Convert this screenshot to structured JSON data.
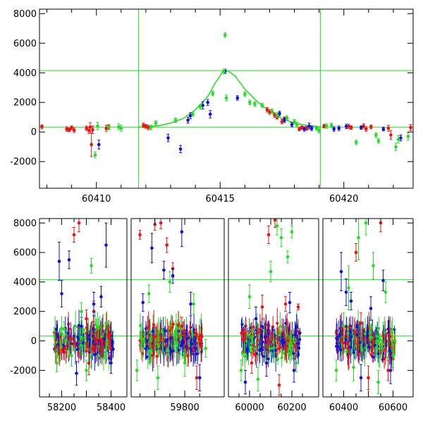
{
  "chart_data": [
    {
      "type": "scatter",
      "title": "",
      "xlabel": "",
      "ylabel": "",
      "xlim": [
        60407.7,
        60422.8
      ],
      "ylim": [
        -3800,
        8300
      ],
      "xticks": [
        60410,
        60415,
        60420
      ],
      "yticks": [
        -2000,
        0,
        2000,
        4000,
        6000,
        8000
      ],
      "hlines": [
        4150,
        330
      ],
      "vlines": [
        60411.7,
        60419.05
      ],
      "colors": {
        "red": "#ee1111",
        "blue": "#1111dd",
        "green": "#22dd22"
      },
      "model_curve": {
        "color": "#22dd22",
        "x": [
          60411.7,
          60412.5,
          60413.0,
          60413.5,
          60414.0,
          60414.5,
          60414.8,
          60415.1,
          60415.3,
          60415.6,
          60416.0,
          60416.5,
          60417.0,
          60417.5,
          60418.0,
          60418.5,
          60419.05
        ],
        "y": [
          330,
          420,
          600,
          900,
          1500,
          2400,
          3300,
          4050,
          4150,
          3800,
          2900,
          2050,
          1400,
          900,
          600,
          450,
          330
        ]
      },
      "series": [
        {
          "color": "red",
          "points": [
            [
              60407.8,
              360,
              120
            ],
            [
              60408.8,
              200,
              150
            ],
            [
              60408.9,
              150,
              120
            ],
            [
              60409.0,
              280,
              130
            ],
            [
              60409.1,
              120,
              150
            ],
            [
              60409.6,
              250,
              150
            ],
            [
              60409.7,
              100,
              200
            ],
            [
              60409.75,
              330,
              300
            ],
            [
              60409.8,
              -850,
              800
            ],
            [
              60409.85,
              150,
              250
            ],
            [
              60410.4,
              250,
              200
            ],
            [
              60410.5,
              350,
              150
            ],
            [
              60411.9,
              450,
              150
            ],
            [
              60412.0,
              380,
              130
            ],
            [
              60412.1,
              300,
              150
            ],
            [
              60416.9,
              1500,
              150
            ],
            [
              60417.0,
              1350,
              150
            ],
            [
              60417.2,
              1150,
              150
            ],
            [
              60417.3,
              1000,
              130
            ],
            [
              60417.5,
              700,
              150
            ],
            [
              60417.6,
              900,
              120
            ],
            [
              60418.2,
              200,
              120
            ],
            [
              60418.3,
              300,
              120
            ],
            [
              60418.5,
              250,
              130
            ],
            [
              60419.2,
              400,
              120
            ],
            [
              60420.2,
              380,
              150
            ],
            [
              60420.3,
              300,
              120
            ],
            [
              60420.8,
              400,
              150
            ],
            [
              60420.9,
              200,
              150
            ],
            [
              60421.1,
              350,
              120
            ],
            [
              60421.8,
              250,
              200
            ],
            [
              60421.9,
              -200,
              300
            ],
            [
              60422.7,
              300,
              200
            ]
          ]
        },
        {
          "color": "blue",
          "points": [
            [
              60410.1,
              -850,
              300
            ],
            [
              60412.9,
              -400,
              250
            ],
            [
              60413.4,
              -1150,
              250
            ],
            [
              60413.7,
              800,
              200
            ],
            [
              60413.8,
              1100,
              200
            ],
            [
              60414.3,
              1800,
              250
            ],
            [
              60414.5,
              2000,
              200
            ],
            [
              60414.6,
              1200,
              250
            ],
            [
              60415.2,
              4100,
              150
            ],
            [
              60415.7,
              2300,
              150
            ],
            [
              60417.4,
              1250,
              150
            ],
            [
              60417.6,
              800,
              150
            ],
            [
              60417.9,
              500,
              150
            ],
            [
              60418.4,
              200,
              150
            ],
            [
              60418.6,
              400,
              200
            ],
            [
              60418.7,
              250,
              150
            ],
            [
              60419.6,
              200,
              150
            ],
            [
              60419.8,
              250,
              150
            ],
            [
              60420.1,
              380,
              150
            ],
            [
              60420.7,
              300,
              120
            ],
            [
              60421.6,
              200,
              120
            ],
            [
              60422.3,
              -400,
              200
            ]
          ]
        },
        {
          "color": "green",
          "points": [
            [
              60409.95,
              -1550,
              200
            ],
            [
              60410.05,
              400,
              250
            ],
            [
              60410.5,
              300,
              150
            ],
            [
              60410.9,
              350,
              200
            ],
            [
              60411.0,
              250,
              200
            ],
            [
              60412.2,
              300,
              150
            ],
            [
              60412.4,
              600,
              150
            ],
            [
              60413.2,
              800,
              150
            ],
            [
              60413.9,
              1200,
              150
            ],
            [
              60414.2,
              1700,
              150
            ],
            [
              60414.7,
              2600,
              150
            ],
            [
              60415.15,
              4100,
              150
            ],
            [
              60415.2,
              6550,
              150
            ],
            [
              60415.25,
              2300,
              200
            ],
            [
              60416.0,
              2550,
              150
            ],
            [
              60416.2,
              2000,
              150
            ],
            [
              60416.4,
              1900,
              150
            ],
            [
              60416.7,
              1800,
              150
            ],
            [
              60417.1,
              1400,
              150
            ],
            [
              60417.3,
              1150,
              150
            ],
            [
              60417.7,
              950,
              150
            ],
            [
              60418.0,
              700,
              150
            ],
            [
              60418.1,
              500,
              150
            ],
            [
              60418.9,
              250,
              150
            ],
            [
              60419.0,
              100,
              150
            ],
            [
              60419.3,
              400,
              150
            ],
            [
              60419.5,
              450,
              150
            ],
            [
              60420.5,
              -700,
              150
            ],
            [
              60421.3,
              -200,
              150
            ],
            [
              60421.4,
              -600,
              150
            ],
            [
              60422.1,
              -1000,
              250
            ],
            [
              60422.2,
              -500,
              250
            ],
            [
              60422.6,
              -300,
              250
            ]
          ]
        }
      ]
    },
    {
      "type": "scatter",
      "title": "",
      "xlabel": "",
      "ylabel": "",
      "xlim": [
        58150,
        60630
      ],
      "ylim": [
        -3800,
        8300
      ],
      "broken_axis": true,
      "segments": [
        {
          "from": 58150,
          "to": 58430,
          "xticks": [
            58200,
            58400
          ]
        },
        {
          "from": 59630,
          "to": 59880,
          "xticks": [
            59800
          ]
        },
        {
          "from": 59940,
          "to": 60260,
          "xticks": [
            60000,
            60200
          ]
        },
        {
          "from": 60350,
          "to": 60630,
          "xticks": [
            60400,
            60600
          ]
        }
      ],
      "yticks": [
        -2000,
        0,
        2000,
        4000,
        6000,
        8000
      ],
      "hlines": [
        4150,
        330
      ],
      "colors": {
        "red": "#ee1111",
        "blue": "#1111dd",
        "green": "#22dd22"
      },
      "series": [
        {
          "color": "red",
          "points": [
            [
              58250,
              7200,
              500
            ],
            [
              58270,
              8000,
              600
            ],
            [
              58300,
              1500,
              600
            ],
            [
              58310,
              -1500,
              800
            ],
            [
              58330,
              2000,
              700
            ],
            [
              58360,
              -500,
              600
            ],
            [
              59650,
              7200,
              300
            ],
            [
              59700,
              7900,
              400
            ],
            [
              59720,
              8000,
              400
            ],
            [
              59740,
              6500,
              500
            ],
            [
              59760,
              4900,
              400
            ],
            [
              59790,
              1000,
              600
            ],
            [
              59810,
              -1000,
              700
            ],
            [
              59840,
              -2500,
              800
            ],
            [
              60010,
              -1500,
              700
            ],
            [
              60060,
              2300,
              800
            ],
            [
              60090,
              7200,
              600
            ],
            [
              60120,
              8200,
              500
            ],
            [
              60140,
              -3000,
              700
            ],
            [
              60170,
              2500,
              500
            ],
            [
              60230,
              2300,
              200
            ],
            [
              60450,
              6000,
              600
            ],
            [
              60470,
              1200,
              700
            ],
            [
              60500,
              -2500,
              800
            ],
            [
              60550,
              8000,
              600
            ],
            [
              60580,
              -2000,
              700
            ]
          ]
        },
        {
          "color": "blue",
          "points": [
            [
              58190,
              5400,
              1300
            ],
            [
              58200,
              3200,
              900
            ],
            [
              58230,
              5500,
              600
            ],
            [
              58260,
              -2200,
              800
            ],
            [
              58280,
              1000,
              600
            ],
            [
              58330,
              2500,
              800
            ],
            [
              58360,
              3000,
              700
            ],
            [
              58380,
              6500,
              1500
            ],
            [
              58400,
              -1500,
              700
            ],
            [
              59660,
              2600,
              600
            ],
            [
              59690,
              6300,
              1000
            ],
            [
              59730,
              4800,
              600
            ],
            [
              59760,
              4400,
              500
            ],
            [
              59790,
              7400,
              1000
            ],
            [
              59820,
              2500,
              800
            ],
            [
              59850,
              -2500,
              900
            ],
            [
              59980,
              -2800,
              800
            ],
            [
              60030,
              1500,
              800
            ],
            [
              60080,
              -1500,
              900
            ],
            [
              60190,
              2600,
              700
            ],
            [
              60210,
              -2000,
              800
            ],
            [
              60390,
              4700,
              1300
            ],
            [
              60410,
              3300,
              900
            ],
            [
              60430,
              2700,
              600
            ],
            [
              60470,
              -2500,
              900
            ],
            [
              60510,
              2200,
              800
            ],
            [
              60560,
              4100,
              700
            ],
            [
              60590,
              -2000,
              900
            ]
          ]
        },
        {
          "color": "green",
          "points": [
            [
              58180,
              -1500,
              600
            ],
            [
              58210,
              800,
              500
            ],
            [
              58240,
              -1000,
              700
            ],
            [
              58280,
              2000,
              600
            ],
            [
              58300,
              -2000,
              700
            ],
            [
              58320,
              5100,
              500
            ],
            [
              58350,
              -1000,
              600
            ],
            [
              58380,
              1200,
              600
            ],
            [
              59640,
              -2000,
              700
            ],
            [
              59680,
              3200,
              600
            ],
            [
              59710,
              -2500,
              800
            ],
            [
              59750,
              4000,
              700
            ],
            [
              59800,
              -1500,
              900
            ],
            [
              59830,
              2500,
              700
            ],
            [
              59870,
              -500,
              600
            ],
            [
              59960,
              -2000,
              700
            ],
            [
              60000,
              3000,
              800
            ],
            [
              60040,
              -2600,
              800
            ],
            [
              60100,
              4700,
              700
            ],
            [
              60130,
              7800,
              600
            ],
            [
              60150,
              7000,
              600
            ],
            [
              60180,
              5700,
              400
            ],
            [
              60200,
              7400,
              400
            ],
            [
              60220,
              -1500,
              600
            ],
            [
              60370,
              -2000,
              700
            ],
            [
              60400,
              1000,
              900
            ],
            [
              60420,
              3600,
              1500
            ],
            [
              60440,
              -1800,
              900
            ],
            [
              60460,
              7000,
              1500
            ],
            [
              60490,
              8000,
              800
            ],
            [
              60520,
              5100,
              900
            ],
            [
              60540,
              -2800,
              800
            ],
            [
              60570,
              3300,
              700
            ],
            [
              60600,
              -1000,
              800
            ]
          ]
        }
      ]
    }
  ]
}
